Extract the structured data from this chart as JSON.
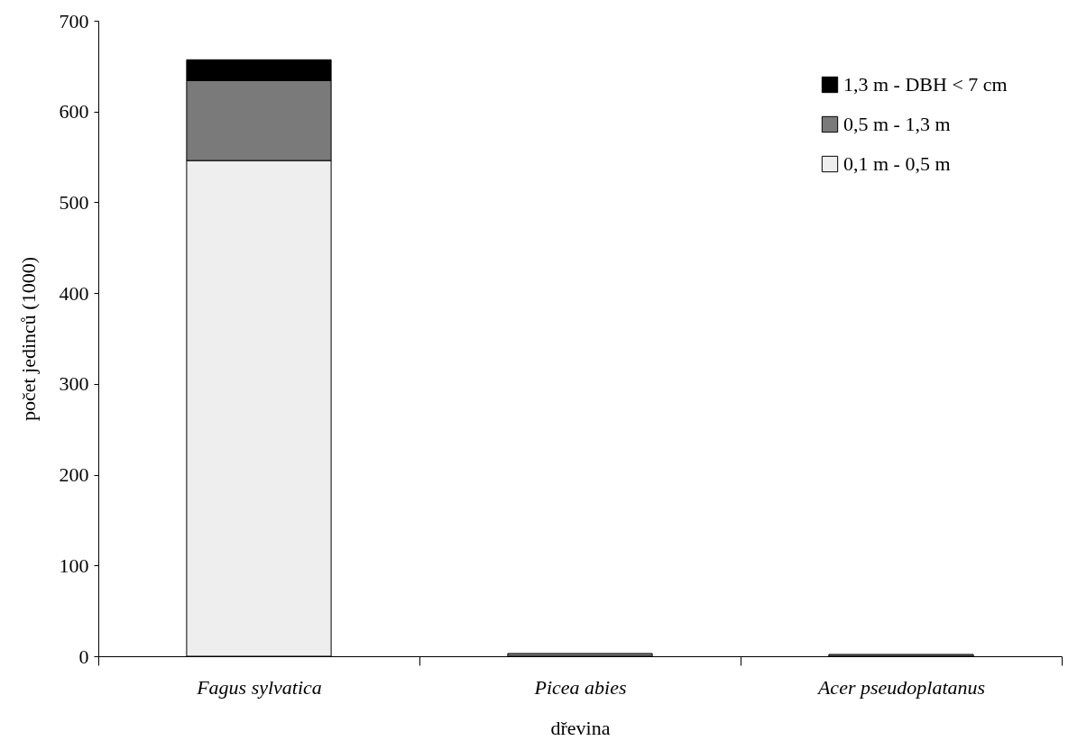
{
  "chart_data": {
    "type": "bar",
    "stacked": true,
    "xlabel": "dřevina",
    "ylabel": "počet jedinců (1000)",
    "categories": [
      "Fagus sylvatica",
      "Picea abies",
      "Acer pseudoplatanus"
    ],
    "series": [
      {
        "name": "0,1 m - 0,5 m",
        "color": "#eeeeee",
        "values": [
          546,
          null,
          null
        ]
      },
      {
        "name": "0,5 m - 1,3 m",
        "color": "#7a7a7a",
        "values": [
          88,
          3,
          2
        ]
      },
      {
        "name": "1,3 m - DBH < 7 cm",
        "color": "#000000",
        "values": [
          23,
          null,
          null
        ]
      }
    ],
    "ylim": [
      0,
      700
    ],
    "yticks": [
      0,
      100,
      200,
      300,
      400,
      500,
      600,
      700
    ],
    "grid": false,
    "legend": "top right"
  }
}
